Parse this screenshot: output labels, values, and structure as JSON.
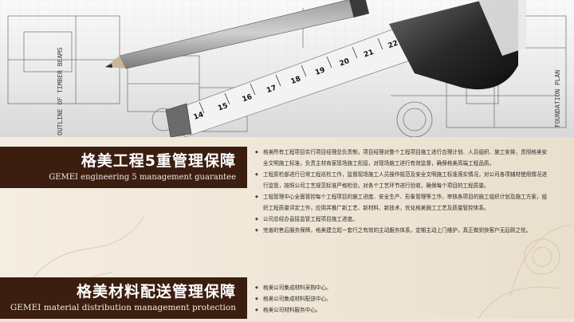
{
  "section1": {
    "title_zh": "格美工程5重管理保障",
    "title_en": "GEMEI engineering 5 management guarantee",
    "items": [
      "格美所有工程项目实行项目经理总负责制，项目经理对整个工程项目施工进行合理计划、人员组织、施工安排，贯彻格美安全文明施工标准，负责主材商家现场施工衔接，对现场施工进行有效监督，确保格美高端工程品质。",
      "工程质检部进行日常工程巡检工作，监督现场施工人员操作规范及安全文明施工标准落实情况，对公司各项辅材使用情况进行监管，按照公司工艺规范标准严格检验，对各个工艺环节进行验收，确保每个项目的工程质量。",
      "工程管理中心全面管控每个工程项目的施工进度、安全生产、形象管理等工作，审核各项目的施工组织计划及施工方案，组织工程质量评定工作，应用并推广新工艺、新材料、新技术，优化格美施工工艺及质量管控体系。",
      "公司总经办直接监管工程项目施工进度。",
      "完善的售后服务保障，格美建立起一套行之有效的主动服务体系，定期主动上门维护，真正做到快客户无后顾之忧。"
    ]
  },
  "section2": {
    "title_zh": "格美材料配送管理保障",
    "title_en": "GEMEI material distribution management protection",
    "items": [
      "格美公司集成材料采购中心。",
      "格美公司集成材料配送中心。",
      "格美公司材料服务中心。"
    ]
  },
  "hero": {
    "plan_text_left": "OUTLINE OF TIMBER BEAMS",
    "plan_text_right": "FOUNDATION PLAN",
    "tape_numbers": [
      "14",
      "15",
      "16",
      "17",
      "18",
      "19",
      "20",
      "21",
      "22"
    ]
  },
  "colors": {
    "banner": "#3b1e10",
    "paper": "#efe6d6",
    "text": "#2b2b2b"
  }
}
